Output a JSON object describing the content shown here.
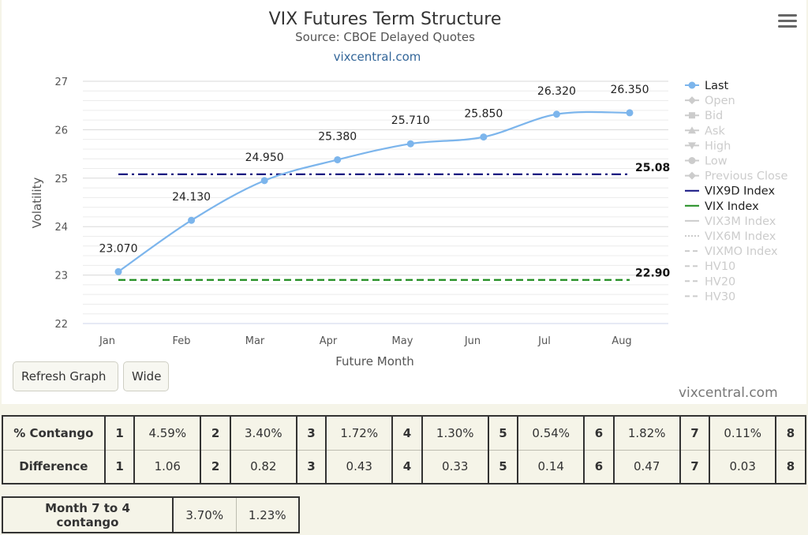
{
  "chart_data": {
    "type": "line",
    "title": "VIX Futures Term Structure",
    "subtitle": "Source: CBOE Delayed Quotes",
    "link": "vixcentral.com",
    "xlabel": "Future Month",
    "ylabel": "Volatility",
    "categories": [
      "Jan",
      "Feb",
      "Mar",
      "Apr",
      "May",
      "Jun",
      "Jul",
      "Aug"
    ],
    "ylim": [
      22,
      27
    ],
    "yticks": [
      22,
      23,
      24,
      25,
      26,
      27
    ],
    "grid": true,
    "series": [
      {
        "name": "Last",
        "values": [
          23.07,
          24.13,
          24.95,
          25.38,
          25.71,
          25.85,
          26.32,
          26.35
        ],
        "labels": [
          "23.070",
          "24.130",
          "24.950",
          "25.380",
          "25.710",
          "25.850",
          "26.320",
          "26.350"
        ],
        "color": "#7cb5ec"
      }
    ],
    "reference_lines": [
      {
        "name": "VIX9D Index",
        "value": 25.08,
        "label": "25.08",
        "color": "#101080",
        "style": "dash-dot"
      },
      {
        "name": "VIX Index",
        "value": 22.9,
        "label": "22.90",
        "color": "#1e8c1e",
        "style": "dash"
      }
    ],
    "legend_position": "right",
    "legend": [
      {
        "name": "Last",
        "active": true,
        "marker": "circle",
        "color": "#7cb5ec"
      },
      {
        "name": "Open",
        "active": false,
        "marker": "diamond"
      },
      {
        "name": "Bid",
        "active": false,
        "marker": "square"
      },
      {
        "name": "Ask",
        "active": false,
        "marker": "triangle"
      },
      {
        "name": "High",
        "active": false,
        "marker": "triangle-down"
      },
      {
        "name": "Low",
        "active": false,
        "marker": "circle"
      },
      {
        "name": "Previous Close",
        "active": false,
        "marker": "diamond"
      },
      {
        "name": "VIX9D Index",
        "active": true,
        "marker": "line",
        "color": "#101080"
      },
      {
        "name": "VIX Index",
        "active": true,
        "marker": "line",
        "color": "#1e8c1e"
      },
      {
        "name": "VIX3M Index",
        "active": false,
        "marker": "line"
      },
      {
        "name": "VIX6M Index",
        "active": false,
        "marker": "dot"
      },
      {
        "name": "VIXMO Index",
        "active": false,
        "marker": "dash"
      },
      {
        "name": "HV10",
        "active": false,
        "marker": "dash"
      },
      {
        "name": "HV20",
        "active": false,
        "marker": "dash"
      },
      {
        "name": "HV30",
        "active": false,
        "marker": "dash"
      }
    ]
  },
  "buttons": {
    "refresh": "Refresh Graph",
    "wide": "Wide"
  },
  "credit": "vixcentral.com",
  "contango_table": {
    "rows": [
      {
        "header": "% Contango",
        "cells": [
          {
            "n": "1",
            "v": "4.59%"
          },
          {
            "n": "2",
            "v": "3.40%"
          },
          {
            "n": "3",
            "v": "1.72%"
          },
          {
            "n": "4",
            "v": "1.30%"
          },
          {
            "n": "5",
            "v": "0.54%"
          },
          {
            "n": "6",
            "v": "1.82%"
          },
          {
            "n": "7",
            "v": "0.11%"
          },
          {
            "n": "8",
            "v": ""
          }
        ]
      },
      {
        "header": "Difference",
        "cells": [
          {
            "n": "1",
            "v": "1.06"
          },
          {
            "n": "2",
            "v": "0.82"
          },
          {
            "n": "3",
            "v": "0.43"
          },
          {
            "n": "4",
            "v": "0.33"
          },
          {
            "n": "5",
            "v": "0.14"
          },
          {
            "n": "6",
            "v": "0.47"
          },
          {
            "n": "7",
            "v": "0.03"
          },
          {
            "n": "8",
            "v": ""
          }
        ]
      }
    ]
  },
  "month_table": {
    "header": "Month 7 to 4 contango",
    "values": [
      "3.70%",
      "1.23%"
    ]
  }
}
